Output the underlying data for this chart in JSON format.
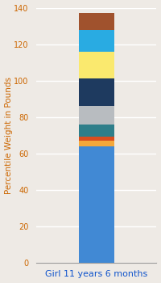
{
  "category": "Girl 11 years 6 months",
  "segments": [
    {
      "value": 64,
      "color": "#4189D4"
    },
    {
      "value": 3,
      "color": "#F5A83A"
    },
    {
      "value": 2,
      "color": "#D94E1F"
    },
    {
      "value": 7,
      "color": "#2E7E8A"
    },
    {
      "value": 10,
      "color": "#B8BCC0"
    },
    {
      "value": 15,
      "color": "#1E3A5F"
    },
    {
      "value": 15,
      "color": "#FAE96E"
    },
    {
      "value": 12,
      "color": "#29ABE2"
    },
    {
      "value": 9,
      "color": "#A0522D"
    }
  ],
  "ylabel": "Percentile Weight in Pounds",
  "ylim": [
    0,
    140
  ],
  "yticks": [
    0,
    20,
    40,
    60,
    80,
    100,
    120,
    140
  ],
  "background_color": "#EEEAE5",
  "grid_color": "#FFFFFF",
  "tick_color": "#CC6600",
  "label_color": "#CC6600",
  "xlabel_color": "#1155CC",
  "ylabel_fontsize": 7.5,
  "xlabel_fontsize": 8,
  "ytick_fontsize": 7,
  "bar_width": 0.35
}
